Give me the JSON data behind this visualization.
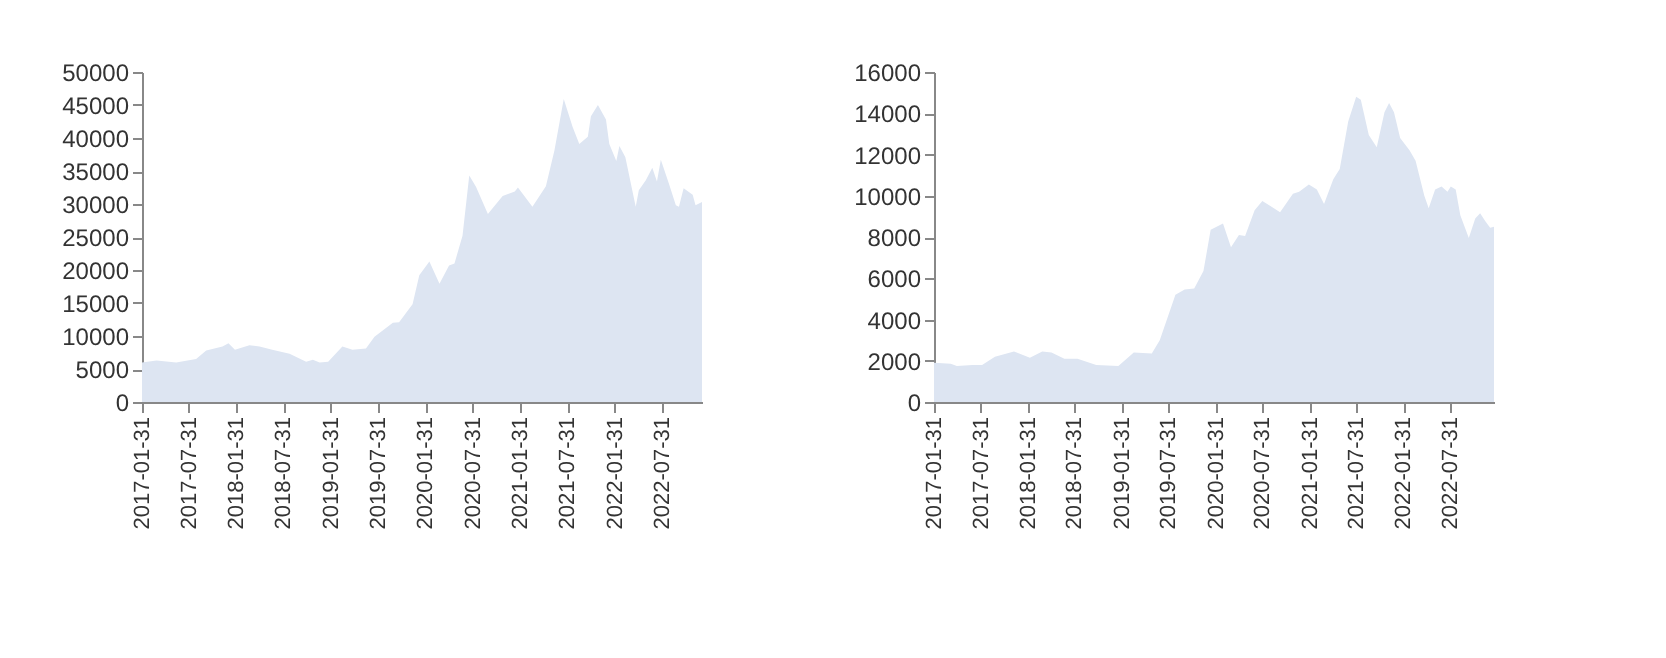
{
  "chart_data": [
    {
      "type": "area",
      "color": "#dde5f2",
      "grid": false,
      "ylim": [
        0,
        50000
      ],
      "yticks": [
        0,
        5000,
        10000,
        15000,
        20000,
        25000,
        30000,
        35000,
        40000,
        45000,
        50000
      ],
      "xlim": [
        "2017-01-31",
        "2023-01-03"
      ],
      "xticks": [
        {
          "value": "2017-01-31",
          "label": "2017-01-31"
        },
        {
          "value": "2017-07-31",
          "label": "2017-07-31"
        },
        {
          "value": "2018-01-31",
          "label": "2018-01-31"
        },
        {
          "value": "2018-07-31",
          "label": "2018-07-31"
        },
        {
          "value": "2019-01-31",
          "label": "2019-01-31"
        },
        {
          "value": "2019-07-31",
          "label": "2019-07-31"
        },
        {
          "value": "2020-01-31",
          "label": "2020-01-31"
        },
        {
          "value": "2020-07-31",
          "label": "2020-07-31"
        },
        {
          "value": "2021-01-31",
          "label": "2021-01-31"
        },
        {
          "value": "2021-07-31",
          "label": "2021-07-31"
        },
        {
          "value": "2022-01-31",
          "label": "2022-01-31"
        },
        {
          "value": "2022-07-31",
          "label": "2022-07-31"
        }
      ],
      "x": [
        "2017-01-31",
        "2017-03-28",
        "2017-06-12",
        "2017-08-28",
        "2017-10-06",
        "2017-12-08",
        "2017-12-31",
        "2018-01-25",
        "2018-03-22",
        "2018-04-30",
        "2018-06-18",
        "2018-08-24",
        "2018-10-27",
        "2018-11-22",
        "2018-12-18",
        "2019-01-20",
        "2019-03-16",
        "2019-04-24",
        "2019-06-15",
        "2019-07-18",
        "2019-09-27",
        "2019-10-21",
        "2019-12-12",
        "2020-01-07",
        "2020-02-15",
        "2020-03-25",
        "2020-05-01",
        "2020-05-22",
        "2020-06-22",
        "2020-07-18",
        "2020-08-13",
        "2020-09-28",
        "2020-11-24",
        "2021-01-10",
        "2021-01-22",
        "2021-03-19",
        "2021-05-10",
        "2021-06-12",
        "2021-07-18",
        "2021-08-21",
        "2021-09-16",
        "2021-10-19",
        "2021-10-31",
        "2021-11-27",
        "2021-12-28",
        "2022-01-10",
        "2022-02-06",
        "2022-02-18",
        "2022-03-13",
        "2022-04-22",
        "2022-05-04",
        "2022-05-31",
        "2022-06-25",
        "2022-07-13",
        "2022-07-28",
        "2022-08-28",
        "2022-09-24",
        "2022-10-06",
        "2022-10-24",
        "2022-11-28",
        "2022-12-09",
        "2023-01-03"
      ],
      "values": [
        6000,
        6300,
        6000,
        6500,
        7800,
        8400,
        8900,
        7900,
        8600,
        8400,
        7900,
        7300,
        6100,
        6400,
        6000,
        6100,
        8400,
        7900,
        8100,
        9900,
        12000,
        12100,
        14800,
        19200,
        21300,
        17900,
        20700,
        21000,
        25200,
        34300,
        32600,
        28500,
        31200,
        31900,
        32500,
        29600,
        32700,
        38100,
        45900,
        41700,
        39100,
        40200,
        43300,
        45000,
        42800,
        39100,
        36500,
        38800,
        37100,
        29600,
        32100,
        33600,
        35500,
        33400,
        36700,
        33100,
        29800,
        29600,
        32400,
        31400,
        29800,
        30300
      ]
    },
    {
      "type": "area",
      "color": "#dde5f2",
      "grid": false,
      "ylim": [
        0,
        16000
      ],
      "yticks": [
        0,
        2000,
        4000,
        6000,
        8000,
        10000,
        12000,
        14000,
        16000
      ],
      "xlim": [
        "2017-01-31",
        "2023-01-18"
      ],
      "xticks": [
        {
          "value": "2017-01-31",
          "label": "2017-01-31"
        },
        {
          "value": "2017-07-31",
          "label": "2017-07-31"
        },
        {
          "value": "2018-01-31",
          "label": "2018-01-31"
        },
        {
          "value": "2018-07-31",
          "label": "2018-07-31"
        },
        {
          "value": "2019-01-31",
          "label": "2019-01-31"
        },
        {
          "value": "2019-07-31",
          "label": "2019-07-31"
        },
        {
          "value": "2020-01-31",
          "label": "2020-01-31"
        },
        {
          "value": "2020-07-31",
          "label": "2020-07-31"
        },
        {
          "value": "2021-01-31",
          "label": "2021-01-31"
        },
        {
          "value": "2021-07-31",
          "label": "2021-07-31"
        },
        {
          "value": "2022-01-31",
          "label": "2022-01-31"
        },
        {
          "value": "2022-07-31",
          "label": "2022-07-31"
        }
      ],
      "x": [
        "2017-01-31",
        "2017-04-06",
        "2017-04-30",
        "2017-06-30",
        "2017-08-06",
        "2017-09-25",
        "2017-12-08",
        "2018-02-08",
        "2018-03-28",
        "2018-05-03",
        "2018-06-22",
        "2018-08-12",
        "2018-10-24",
        "2019-01-18",
        "2019-03-19",
        "2019-05-28",
        "2019-06-28",
        "2019-08-28",
        "2019-10-03",
        "2019-11-09",
        "2019-12-15",
        "2020-01-12",
        "2020-02-29",
        "2020-03-31",
        "2020-05-01",
        "2020-05-25",
        "2020-07-01",
        "2020-07-31",
        "2020-10-08",
        "2020-11-27",
        "2020-12-21",
        "2021-01-28",
        "2021-02-28",
        "2021-03-28",
        "2021-05-03",
        "2021-05-28",
        "2021-06-30",
        "2021-07-31",
        "2021-08-18",
        "2021-09-18",
        "2021-10-19",
        "2021-11-18",
        "2021-12-06",
        "2021-12-25",
        "2022-01-18",
        "2022-02-24",
        "2022-03-19",
        "2022-04-22",
        "2022-05-09",
        "2022-06-03",
        "2022-06-28",
        "2022-07-21",
        "2022-08-03",
        "2022-08-22",
        "2022-09-09",
        "2022-10-12",
        "2022-11-06",
        "2022-11-25",
        "2022-12-16",
        "2023-01-03",
        "2023-01-18"
      ],
      "values": [
        1900,
        1850,
        1750,
        1800,
        1800,
        2200,
        2450,
        2150,
        2450,
        2400,
        2100,
        2100,
        1800,
        1750,
        2400,
        2350,
        3000,
        5200,
        5450,
        5500,
        6350,
        8350,
        8650,
        7500,
        8100,
        8050,
        9300,
        9750,
        9200,
        10100,
        10200,
        10550,
        10300,
        9600,
        10800,
        11300,
        13600,
        14800,
        14650,
        12950,
        12350,
        14050,
        14500,
        14050,
        12800,
        12200,
        11700,
        10000,
        9400,
        10300,
        10450,
        10200,
        10450,
        10300,
        9050,
        7950,
        8900,
        9150,
        8750,
        8450,
        8500
      ]
    }
  ]
}
